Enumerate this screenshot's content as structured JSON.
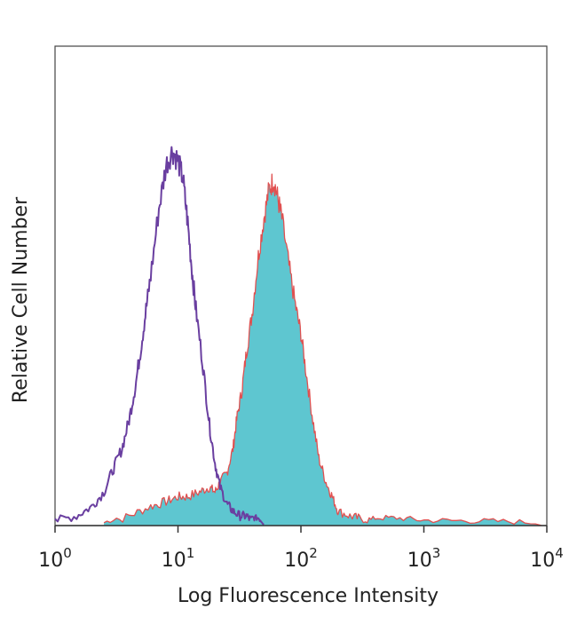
{
  "chart_data": {
    "type": "area",
    "xlabel": "Log Fluorescence Intensity",
    "ylabel": "Relative Cell Number",
    "x_scale": "log",
    "xlim": [
      1,
      10000
    ],
    "ylim": [
      0,
      1
    ],
    "x_ticks": [
      {
        "value": 1,
        "base": "10",
        "exp": "0"
      },
      {
        "value": 10,
        "base": "10",
        "exp": "1"
      },
      {
        "value": 100,
        "base": "10",
        "exp": "2"
      },
      {
        "value": 1000,
        "base": "10",
        "exp": "3"
      },
      {
        "value": 10000,
        "base": "10",
        "exp": "4"
      }
    ],
    "series": [
      {
        "color": "#6a3fa0",
        "fill": "none",
        "x": [
          1,
          1.5,
          2,
          2.5,
          3,
          3.5,
          4,
          4.5,
          5,
          5.5,
          6,
          7,
          8,
          9,
          10,
          11,
          12,
          13,
          14,
          16,
          18,
          20,
          22,
          25,
          28,
          32,
          36,
          40,
          45,
          50
        ],
        "y": [
          0.01,
          0.02,
          0.04,
          0.07,
          0.12,
          0.16,
          0.22,
          0.29,
          0.37,
          0.45,
          0.52,
          0.66,
          0.75,
          0.78,
          0.76,
          0.72,
          0.63,
          0.53,
          0.45,
          0.33,
          0.21,
          0.13,
          0.08,
          0.045,
          0.03,
          0.02,
          0.02,
          0.01,
          0.01,
          0.0
        ]
      },
      {
        "color": "#e05050",
        "fill": "#5ec6d0",
        "x": [
          2.5,
          4,
          6,
          8,
          10,
          12,
          15,
          18,
          20,
          22,
          25,
          28,
          30,
          33,
          36,
          40,
          45,
          50,
          55,
          60,
          65,
          70,
          80,
          90,
          100,
          110,
          125,
          140,
          160,
          180,
          200,
          250,
          300,
          400,
          600,
          1000,
          2000,
          4000,
          9000
        ],
        "y": [
          0.0,
          0.02,
          0.04,
          0.05,
          0.06,
          0.06,
          0.07,
          0.08,
          0.07,
          0.09,
          0.11,
          0.16,
          0.22,
          0.28,
          0.36,
          0.44,
          0.56,
          0.64,
          0.7,
          0.72,
          0.68,
          0.64,
          0.54,
          0.46,
          0.4,
          0.32,
          0.22,
          0.14,
          0.09,
          0.06,
          0.03,
          0.02,
          0.015,
          0.01,
          0.01,
          0.005,
          0.004,
          0.003,
          0.0
        ]
      }
    ]
  }
}
